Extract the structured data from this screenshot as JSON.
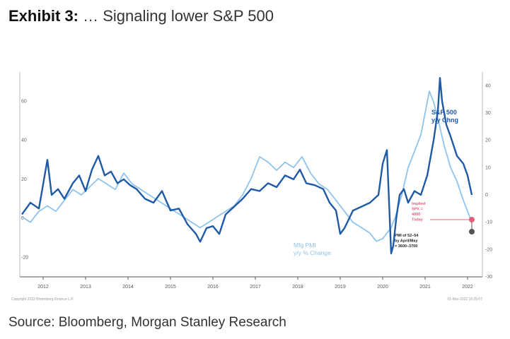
{
  "header": {
    "lead": "Exhibit 3:",
    "rest": " … Signaling lower S&P 500"
  },
  "source": "Source: Bloomberg, Morgan Stanley Research",
  "copyright": "Copyright 2022 Bloomberg Finance L.P.",
  "stamp": "01-Mar-2022 16:25:07",
  "chart_data": {
    "type": "line",
    "x_tick_labels": [
      "2012",
      "2013",
      "2014",
      "2015",
      "2016",
      "2017",
      "2018",
      "2019",
      "2020",
      "2021",
      "2022"
    ],
    "left_axis": {
      "ticks": [
        "60",
        "40",
        "20",
        "0",
        "-20"
      ],
      "range": [
        -30,
        75
      ]
    },
    "right_axis": {
      "ticks": [
        "40",
        "30",
        "20",
        "10",
        "0",
        "-10",
        "-20",
        "-30"
      ],
      "range": [
        -30,
        45
      ]
    },
    "grid": false,
    "series": [
      {
        "name": "S&P 500 y/y Chng",
        "label_lines": [
          "S&P 500",
          "y/y Chng"
        ],
        "axis": "left",
        "color": "#1f5aa6",
        "x": [
          2011.5,
          2011.7,
          2011.9,
          2012.1,
          2012.2,
          2012.35,
          2012.5,
          2012.7,
          2012.85,
          2013.0,
          2013.15,
          2013.3,
          2013.45,
          2013.6,
          2013.75,
          2013.9,
          2014.05,
          2014.2,
          2014.4,
          2014.6,
          2014.8,
          2015.0,
          2015.2,
          2015.4,
          2015.6,
          2015.7,
          2015.85,
          2016.0,
          2016.15,
          2016.3,
          2016.5,
          2016.7,
          2016.9,
          2017.1,
          2017.3,
          2017.5,
          2017.7,
          2017.9,
          2018.05,
          2018.2,
          2018.4,
          2018.6,
          2018.75,
          2018.9,
          2019.0,
          2019.1,
          2019.3,
          2019.5,
          2019.7,
          2019.9,
          2020.0,
          2020.1,
          2020.2,
          2020.25,
          2020.32,
          2020.4,
          2020.5,
          2020.6,
          2020.75,
          2020.9,
          2021.05,
          2021.2,
          2021.3,
          2021.35,
          2021.4,
          2021.5,
          2021.6,
          2021.75,
          2021.9,
          2022.0,
          2022.1
        ],
        "y": [
          2,
          8,
          5,
          30,
          12,
          15,
          10,
          18,
          22,
          14,
          25,
          32,
          22,
          24,
          18,
          20,
          17,
          15,
          10,
          8,
          14,
          4,
          5,
          -3,
          -8,
          -12,
          -5,
          -4,
          -8,
          2,
          6,
          10,
          15,
          14,
          18,
          16,
          22,
          20,
          25,
          18,
          17,
          15,
          8,
          4,
          -8,
          -5,
          4,
          6,
          8,
          12,
          28,
          35,
          -18,
          -14,
          0,
          12,
          15,
          8,
          14,
          12,
          22,
          40,
          55,
          72,
          60,
          48,
          42,
          32,
          28,
          22,
          12
        ]
      },
      {
        "name": "Mfg PMI y/y % Change",
        "label_lines": [
          "Mfg PMI",
          "y/y % Change"
        ],
        "axis": "right",
        "color": "#8ec4ee",
        "x": [
          2011.5,
          2011.7,
          2011.9,
          2012.1,
          2012.3,
          2012.5,
          2012.7,
          2012.9,
          2013.1,
          2013.3,
          2013.5,
          2013.7,
          2013.9,
          2014.1,
          2014.3,
          2014.5,
          2014.7,
          2014.9,
          2015.1,
          2015.3,
          2015.5,
          2015.7,
          2015.9,
          2016.1,
          2016.3,
          2016.5,
          2016.7,
          2016.9,
          2017.0,
          2017.1,
          2017.3,
          2017.5,
          2017.7,
          2017.9,
          2018.1,
          2018.3,
          2018.5,
          2018.7,
          2018.9,
          2019.1,
          2019.3,
          2019.5,
          2019.7,
          2019.85,
          2020.0,
          2020.2,
          2020.3,
          2020.45,
          2020.6,
          2020.7,
          2020.8,
          2020.9,
          2021.0,
          2021.1,
          2021.2,
          2021.3,
          2021.45,
          2021.6,
          2021.75,
          2021.9,
          2022.0,
          2022.1
        ],
        "y": [
          -8,
          -10,
          -6,
          -4,
          -6,
          -2,
          2,
          0,
          3,
          6,
          4,
          2,
          8,
          4,
          2,
          0,
          -2,
          -4,
          -6,
          -8,
          -10,
          -12,
          -10,
          -8,
          -6,
          -4,
          0,
          6,
          10,
          14,
          12,
          9,
          12,
          10,
          14,
          8,
          4,
          2,
          -2,
          -6,
          -10,
          -12,
          -14,
          -17,
          -16,
          -12,
          -8,
          0,
          10,
          14,
          18,
          22,
          30,
          38,
          34,
          28,
          18,
          10,
          5,
          -2,
          -6,
          -10
        ]
      }
    ],
    "annotations": [
      {
        "lines": [
          "Implied",
          "SPX =",
          "4000",
          "Today"
        ],
        "color": "#e0607a"
      },
      {
        "lines": [
          "PMI of 52–54",
          "by April/May",
          "= 3600–3700"
        ],
        "color": "#222222"
      }
    ]
  }
}
